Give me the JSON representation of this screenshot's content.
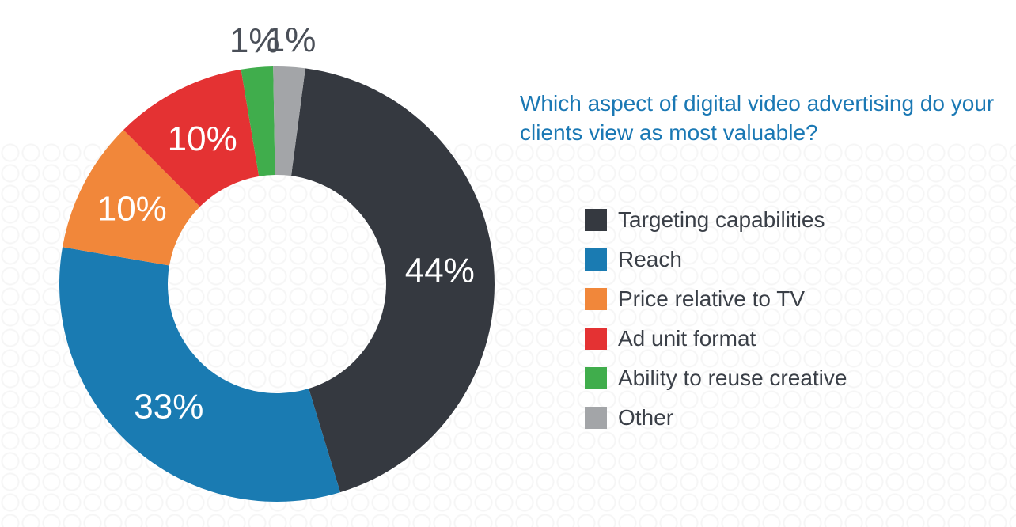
{
  "chart_data": {
    "type": "pie",
    "title": "Which aspect of digital video advertising do your clients view as most valuable?",
    "categories": [
      "Targeting capabilities",
      "Reach",
      "Price relative to TV",
      "Ad unit format",
      "Ability to reuse creative",
      "Other"
    ],
    "values": [
      44,
      33,
      10,
      10,
      1,
      1
    ],
    "value_labels": [
      "44%",
      "33%",
      "10%",
      "10%",
      "1%",
      "1%"
    ],
    "colors": [
      "#353940",
      "#1a7bb2",
      "#f1873a",
      "#e43233",
      "#40ad4c",
      "#a3a5a8"
    ],
    "donut": true,
    "legend_position": "right"
  }
}
